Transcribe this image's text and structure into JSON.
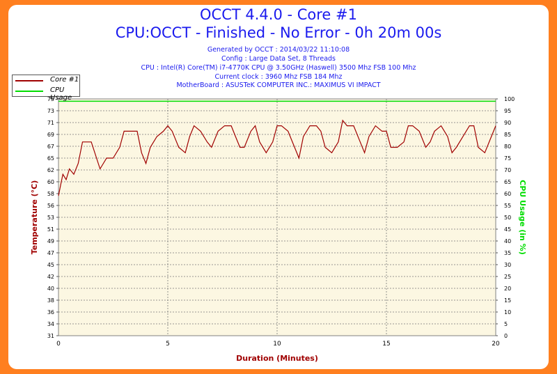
{
  "header": {
    "title": "OCCT 4.4.0 - Core #1",
    "subtitle": "CPU:OCCT - Finished - No Error - 0h 20m 00s",
    "info_lines": [
      "Generated by OCCT : 2014/03/22 11:10:08",
      "Config : Large Data Set, 8 Threads",
      "CPU : Intel(R) Core(TM) i7-4770K CPU @ 3.50GHz (Haswell) 3500 Mhz FSB 100 Mhz",
      "Current clock : 3960 Mhz FSB 184 Mhz",
      "MotherBoard : ASUSTeK COMPUTER INC.: MAXIMUS VI IMPACT"
    ]
  },
  "colors": {
    "frame": "#ff7f1f",
    "plot_bg": "#fcf7e2",
    "temperature": "#a00000",
    "cpu_usage": "#00dd00",
    "text_blue": "#1a1aee"
  },
  "chart_data": {
    "type": "line",
    "xlabel": "Duration (Minutes)",
    "ylabel_left": "Temperature (°C)",
    "ylabel_right": "CPU Usage (in %)",
    "xlim": [
      0,
      20
    ],
    "ylim_left": [
      31,
      75
    ],
    "ylim_right": [
      0,
      100
    ],
    "x_ticks": [
      0,
      5,
      10,
      15,
      20
    ],
    "y_ticks_left": [
      31,
      34,
      36,
      38,
      40,
      42,
      45,
      47,
      49,
      51,
      53,
      56,
      58,
      60,
      62,
      65,
      67,
      69,
      71,
      73,
      75
    ],
    "y_ticks_right": [
      0,
      5,
      10,
      15,
      20,
      25,
      30,
      35,
      40,
      45,
      50,
      55,
      60,
      65,
      70,
      75,
      80,
      85,
      90,
      95,
      100
    ],
    "grid": true,
    "legend_placement": "top-left",
    "series": [
      {
        "name": "Core #1",
        "axis": "left",
        "x": [
          0,
          0.1,
          0.2,
          0.35,
          0.5,
          0.7,
          0.9,
          1.1,
          1.5,
          1.9,
          2.2,
          2.5,
          2.8,
          3.0,
          3.3,
          3.6,
          3.8,
          4.0,
          4.2,
          4.5,
          4.8,
          5.0,
          5.2,
          5.5,
          5.8,
          6.0,
          6.2,
          6.5,
          6.8,
          7.0,
          7.3,
          7.6,
          7.9,
          8.1,
          8.3,
          8.5,
          8.8,
          9.0,
          9.2,
          9.5,
          9.8,
          10.0,
          10.2,
          10.5,
          10.8,
          11.0,
          11.2,
          11.5,
          11.8,
          12.0,
          12.2,
          12.5,
          12.8,
          13.0,
          13.2,
          13.5,
          13.8,
          14.0,
          14.2,
          14.5,
          14.8,
          15.0,
          15.2,
          15.5,
          15.8,
          16.0,
          16.2,
          16.5,
          16.8,
          17.0,
          17.2,
          17.5,
          17.8,
          18.0,
          18.2,
          18.5,
          18.8,
          19.0,
          19.2,
          19.5,
          19.8,
          20.0
        ],
        "values": [
          57,
          59,
          61,
          60,
          62,
          61,
          63,
          67,
          67,
          62,
          64,
          64,
          66,
          69,
          69,
          69,
          65,
          63,
          66,
          68,
          69,
          70,
          69,
          66,
          65,
          68,
          70,
          69,
          67,
          66,
          69,
          70,
          70,
          68,
          66,
          66,
          69,
          70,
          67,
          65,
          67,
          70,
          70,
          69,
          66,
          64,
          68,
          70,
          70,
          69,
          66,
          65,
          67,
          71,
          70,
          70,
          67,
          65,
          68,
          70,
          69,
          69,
          66,
          66,
          67,
          70,
          70,
          69,
          66,
          67,
          69,
          70,
          68,
          65,
          66,
          68,
          70,
          70,
          66,
          65,
          68,
          70
        ]
      },
      {
        "name": "CPU Usage",
        "axis": "right",
        "x": [
          0,
          20
        ],
        "values": [
          99,
          99
        ]
      }
    ]
  }
}
